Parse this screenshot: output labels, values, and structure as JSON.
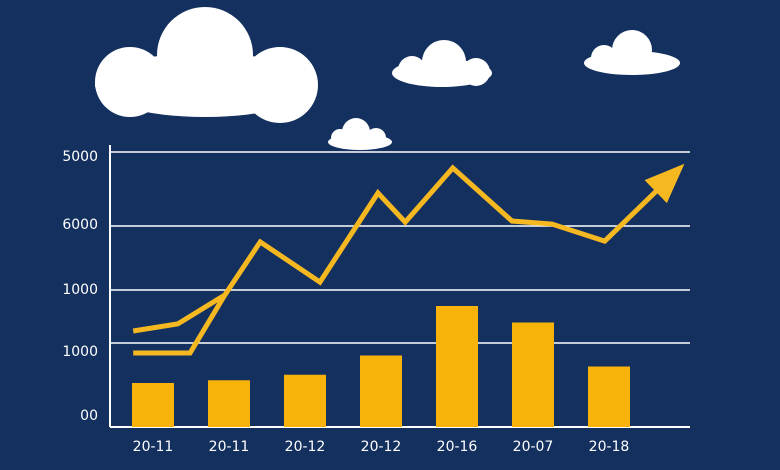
{
  "chart_data": {
    "type": "bar",
    "categories": [
      "20-11",
      "20-11",
      "20-12",
      "20-12",
      "20-16",
      "20-07",
      "20-18"
    ],
    "values": [
      16,
      17,
      19,
      26,
      44,
      38,
      22
    ],
    "color": "#f7b30a",
    "y_labels": [
      "00",
      "1000",
      "1000",
      "6000",
      "5000"
    ],
    "ylim": [
      0,
      100
    ],
    "xlim": [
      0,
      100
    ],
    "lines": [
      {
        "color": "#f5b820",
        "x": [
          4,
          11.7,
          19.8,
          25.9,
          36.2,
          46.2,
          50.9,
          59.1,
          69.3,
          76.2,
          85.3,
          98.3
        ],
        "values": [
          34.9,
          37.5,
          48,
          67.3,
          52.7,
          85.1,
          74.5,
          94.2,
          74.9,
          73.8,
          67.6,
          94.2
        ]
      },
      {
        "color": "#f5b820",
        "x": [
          4,
          13.8,
          19.8
        ],
        "values": [
          26.9,
          26.9,
          48
        ]
      }
    ],
    "grid": true
  }
}
